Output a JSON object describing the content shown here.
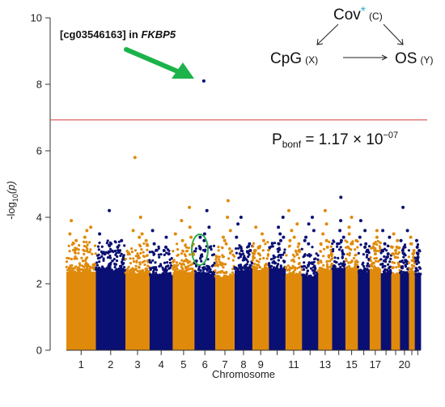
{
  "chart_data": {
    "type": "scatter",
    "subtype": "manhattan",
    "xlabel": "Chromosome",
    "ylabel_parts": {
      "main": "-log",
      "sub": "10",
      "arg": "(p)"
    },
    "ylim": [
      0,
      10
    ],
    "yticks": [
      0,
      2,
      4,
      6,
      8,
      10
    ],
    "grid": false,
    "colors": {
      "odd": "#E08A0B",
      "even": "#0A0F73",
      "threshold": "#E06060",
      "arrow": "#1BB34A",
      "circle": "#2EAA4A",
      "asterisk": "#2BB5C8"
    },
    "chromosomes": [
      {
        "label": "1",
        "tick_label": "1",
        "color": "odd",
        "top": [
          3.9,
          3.7,
          3.6,
          3.5,
          3.4,
          3.3
        ]
      },
      {
        "label": "2",
        "tick_label": "2",
        "color": "even",
        "top": [
          4.2,
          3.5,
          3.3,
          3.2,
          3.1,
          3.0
        ]
      },
      {
        "label": "3",
        "tick_label": "3",
        "color": "odd",
        "top": [
          5.8,
          4.0,
          3.6,
          3.5,
          3.4,
          3.3
        ]
      },
      {
        "label": "4",
        "tick_label": "4",
        "color": "even",
        "top": [
          3.6,
          3.4,
          3.2,
          3.1,
          3.0,
          2.9
        ]
      },
      {
        "label": "5",
        "tick_label": "5",
        "color": "odd",
        "top": [
          4.3,
          3.9,
          3.7,
          3.5,
          3.4,
          3.3
        ]
      },
      {
        "label": "6",
        "tick_label": "6",
        "color": "even",
        "top": [
          8.1,
          4.2,
          3.7,
          3.5,
          3.4,
          3.3
        ]
      },
      {
        "label": "7",
        "tick_label": "7",
        "color": "odd",
        "top": [
          4.5,
          4.0,
          3.6,
          3.4,
          3.3,
          3.2
        ]
      },
      {
        "label": "8",
        "tick_label": "8",
        "color": "even",
        "top": [
          4.0,
          3.8,
          3.4,
          3.2,
          3.1,
          3.0
        ]
      },
      {
        "label": "9",
        "tick_label": "9",
        "color": "odd",
        "top": [
          3.7,
          3.5,
          3.3,
          3.1,
          3.0,
          2.9
        ]
      },
      {
        "label": "10",
        "tick_label": "",
        "color": "even",
        "top": [
          4.0,
          3.7,
          3.5,
          3.4,
          3.3,
          3.2
        ]
      },
      {
        "label": "11",
        "tick_label": "11",
        "color": "odd",
        "top": [
          4.2,
          3.8,
          3.6,
          3.4,
          3.3,
          3.2
        ]
      },
      {
        "label": "12",
        "tick_label": "",
        "color": "even",
        "top": [
          4.0,
          3.8,
          3.6,
          3.4,
          3.3,
          3.2
        ]
      },
      {
        "label": "13",
        "tick_label": "13",
        "color": "odd",
        "top": [
          4.2,
          3.8,
          3.5,
          3.3,
          3.2,
          3.1
        ]
      },
      {
        "label": "14",
        "tick_label": "",
        "color": "even",
        "top": [
          4.6,
          3.9,
          3.6,
          3.4,
          3.3,
          3.2
        ]
      },
      {
        "label": "15",
        "tick_label": "15",
        "color": "odd",
        "top": [
          4.0,
          3.7,
          3.5,
          3.3,
          3.2,
          3.1
        ]
      },
      {
        "label": "16",
        "tick_label": "",
        "color": "even",
        "top": [
          3.9,
          3.6,
          3.4,
          3.2,
          3.1,
          3.0
        ]
      },
      {
        "label": "17",
        "tick_label": "17",
        "color": "odd",
        "top": [
          3.6,
          3.4,
          3.2,
          3.1,
          3.0,
          2.9
        ]
      },
      {
        "label": "18",
        "tick_label": "",
        "color": "even",
        "top": [
          3.6,
          3.4,
          3.2,
          3.0,
          2.9,
          2.8
        ]
      },
      {
        "label": "19",
        "tick_label": "",
        "color": "odd",
        "top": [
          3.5,
          3.3,
          3.1,
          3.0,
          2.9,
          2.8
        ]
      },
      {
        "label": "20",
        "tick_label": "20",
        "color": "even",
        "top": [
          4.3,
          3.6,
          3.3,
          3.1,
          3.0,
          2.9
        ]
      },
      {
        "label": "21",
        "tick_label": "",
        "color": "odd",
        "top": [
          3.4,
          3.2,
          3.0,
          2.9,
          2.8,
          2.7
        ]
      },
      {
        "label": "22",
        "tick_label": "",
        "color": "even",
        "top": [
          3.3,
          3.1,
          3.0,
          2.9,
          2.8,
          2.7
        ]
      }
    ],
    "threshold": {
      "y": 6.93,
      "label_prefix": "P",
      "label_sub": "bonf",
      "label_mid": " = 1.17 × 10",
      "label_sup": "−07"
    },
    "annotation": {
      "prefix": "[cg03546163] in ",
      "gene": "FKBP5",
      "target_chromosome": "6",
      "target_y": 8.1
    },
    "dag": {
      "cov": "Cov",
      "asterisk": "*",
      "cov_tag": "(C)",
      "cpg": "CpG",
      "cpg_tag": "(X)",
      "os": "OS",
      "os_tag": "(Y)"
    }
  }
}
